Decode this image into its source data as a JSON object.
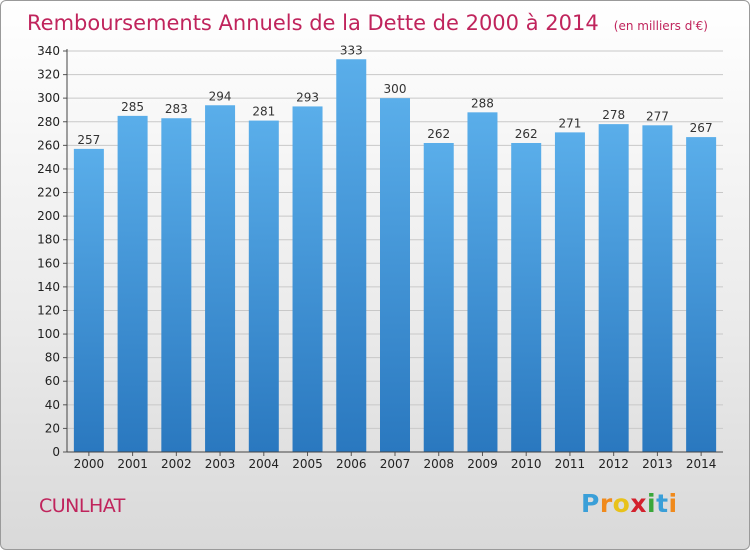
{
  "chart_data": {
    "type": "bar",
    "title": "Remboursements Annuels de la Dette de 2000 à 2014",
    "unit_note": "(en milliers d'€)",
    "categories": [
      "2000",
      "2001",
      "2002",
      "2003",
      "2004",
      "2005",
      "2006",
      "2007",
      "2008",
      "2009",
      "2010",
      "2011",
      "2012",
      "2013",
      "2014"
    ],
    "values": [
      257,
      285,
      283,
      294,
      281,
      293,
      333,
      300,
      262,
      288,
      262,
      271,
      278,
      277,
      267
    ],
    "value_labels": [
      "257",
      "285",
      "283",
      "294",
      "281",
      "293",
      "333",
      "300",
      "262",
      "288",
      "262",
      "271",
      "278",
      "277",
      "267"
    ],
    "xlabel": "",
    "ylabel": "",
    "ylim": [
      0,
      340
    ],
    "y_ticks": [
      "0",
      "20",
      "40",
      "60",
      "80",
      "100",
      "120",
      "140",
      "160",
      "180",
      "200",
      "220",
      "240",
      "260",
      "280",
      "300",
      "320",
      "340"
    ],
    "grid": true,
    "bar_color": "#3d8fd6"
  },
  "commune": "CUNLHAT",
  "logo": {
    "letters": [
      {
        "ch": "P",
        "color": "#3a9fd8"
      },
      {
        "ch": "r",
        "color": "#f08a1c"
      },
      {
        "ch": "o",
        "color": "#e8c21a"
      },
      {
        "ch": "x",
        "color": "#d3212d"
      },
      {
        "ch": "i",
        "color": "#3aa73a"
      },
      {
        "ch": "t",
        "color": "#3a9fd8"
      },
      {
        "ch": "i",
        "color": "#f08a1c"
      }
    ]
  }
}
